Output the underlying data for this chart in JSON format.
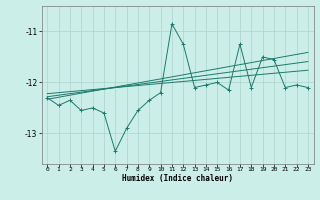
{
  "xlabel": "Humidex (Indice chaleur)",
  "bg_color": "#cceee8",
  "line_color": "#1a7a6e",
  "grid_color": "#aad4cc",
  "x": [
    0,
    1,
    2,
    3,
    4,
    5,
    6,
    7,
    8,
    9,
    10,
    11,
    12,
    13,
    14,
    15,
    16,
    17,
    18,
    19,
    20,
    21,
    22,
    23
  ],
  "y_main": [
    -12.3,
    -12.45,
    -12.35,
    -12.55,
    -12.5,
    -12.6,
    -13.35,
    -12.9,
    -12.55,
    -12.35,
    -12.2,
    -10.85,
    -11.25,
    -12.1,
    -12.05,
    -12.0,
    -12.15,
    -11.25,
    -12.1,
    -11.5,
    -11.55,
    -12.1,
    -12.05,
    -12.1
  ],
  "y_trend1": [
    -12.28,
    -12.25,
    -12.22,
    -12.19,
    -12.16,
    -12.13,
    -12.1,
    -12.07,
    -12.04,
    -12.01,
    -11.98,
    -11.95,
    -11.92,
    -11.89,
    -11.86,
    -11.83,
    -11.8,
    -11.77,
    -11.74,
    -11.71,
    -11.68,
    -11.65,
    -11.62,
    -11.59
  ],
  "y_trend2": [
    -12.33,
    -12.29,
    -12.25,
    -12.21,
    -12.17,
    -12.13,
    -12.09,
    -12.05,
    -12.01,
    -11.97,
    -11.93,
    -11.89,
    -11.85,
    -11.81,
    -11.77,
    -11.73,
    -11.69,
    -11.65,
    -11.61,
    -11.57,
    -11.53,
    -11.49,
    -11.45,
    -11.41
  ],
  "y_trend3": [
    -12.22,
    -12.2,
    -12.18,
    -12.16,
    -12.14,
    -12.12,
    -12.1,
    -12.08,
    -12.06,
    -12.04,
    -12.02,
    -12.0,
    -11.98,
    -11.96,
    -11.94,
    -11.92,
    -11.9,
    -11.88,
    -11.86,
    -11.84,
    -11.82,
    -11.8,
    -11.78,
    -11.76
  ],
  "ylim": [
    -13.6,
    -10.5
  ],
  "yticks": [
    -13,
    -12,
    -11
  ],
  "xlim": [
    -0.5,
    23.5
  ],
  "xticks": [
    0,
    1,
    2,
    3,
    4,
    5,
    6,
    7,
    8,
    9,
    10,
    11,
    12,
    13,
    14,
    15,
    16,
    17,
    18,
    19,
    20,
    21,
    22,
    23
  ]
}
